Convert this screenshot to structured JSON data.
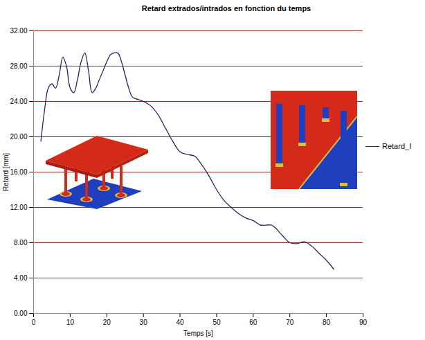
{
  "chart_data": {
    "type": "line",
    "title": "Retard extrados/intrados en fonction du temps",
    "x_label": "Temps [s]",
    "y_label": "Retard [mm]",
    "x": [
      2,
      3,
      4,
      5,
      6,
      7,
      8,
      9,
      10,
      11,
      12,
      13,
      14,
      15,
      16,
      17,
      18,
      19,
      20,
      21,
      22,
      23,
      24,
      25,
      26,
      27,
      28,
      30,
      32,
      34,
      36,
      38,
      40,
      42,
      44,
      46,
      48,
      50,
      52,
      54,
      56,
      58,
      60,
      62,
      64,
      65,
      66,
      68,
      70,
      72,
      74,
      76,
      78,
      80,
      82
    ],
    "series": [
      {
        "name": "Retard_I",
        "color": "#1f2a5c",
        "values": [
          19.5,
          23,
          25.5,
          26,
          25.5,
          27,
          29,
          28,
          25.5,
          25,
          26.5,
          28.5,
          29.5,
          27.5,
          25,
          25.5,
          26.5,
          27.5,
          28.5,
          29.3,
          29.5,
          29.5,
          28.5,
          27,
          25.5,
          24.5,
          24.3,
          24,
          23.5,
          22.5,
          21,
          19.5,
          18.3,
          18,
          17.8,
          16.8,
          15.5,
          14,
          12.8,
          12,
          11.3,
          10.8,
          10.5,
          10,
          10,
          10,
          9.7,
          8.8,
          8,
          7.9,
          8.1,
          7.6,
          6.8,
          6,
          5
        ]
      }
    ],
    "xlim": [
      0,
      90
    ],
    "xticks": [
      0,
      10,
      20,
      30,
      40,
      50,
      60,
      70,
      80,
      90
    ],
    "ylim": [
      0,
      32
    ],
    "yticks": [
      {
        "value": 0,
        "label": "0.00"
      },
      {
        "value": 4,
        "label": "4.00"
      },
      {
        "value": 8,
        "label": "8.00"
      },
      {
        "value": 12,
        "label": "12.00"
      },
      {
        "value": 16,
        "label": "16.00"
      },
      {
        "value": 20,
        "label": "20.00"
      },
      {
        "value": 24,
        "label": "24.00"
      },
      {
        "value": 28,
        "label": "28.00"
      },
      {
        "value": 32,
        "label": "32.00"
      }
    ],
    "grid": true,
    "legend": "right"
  }
}
